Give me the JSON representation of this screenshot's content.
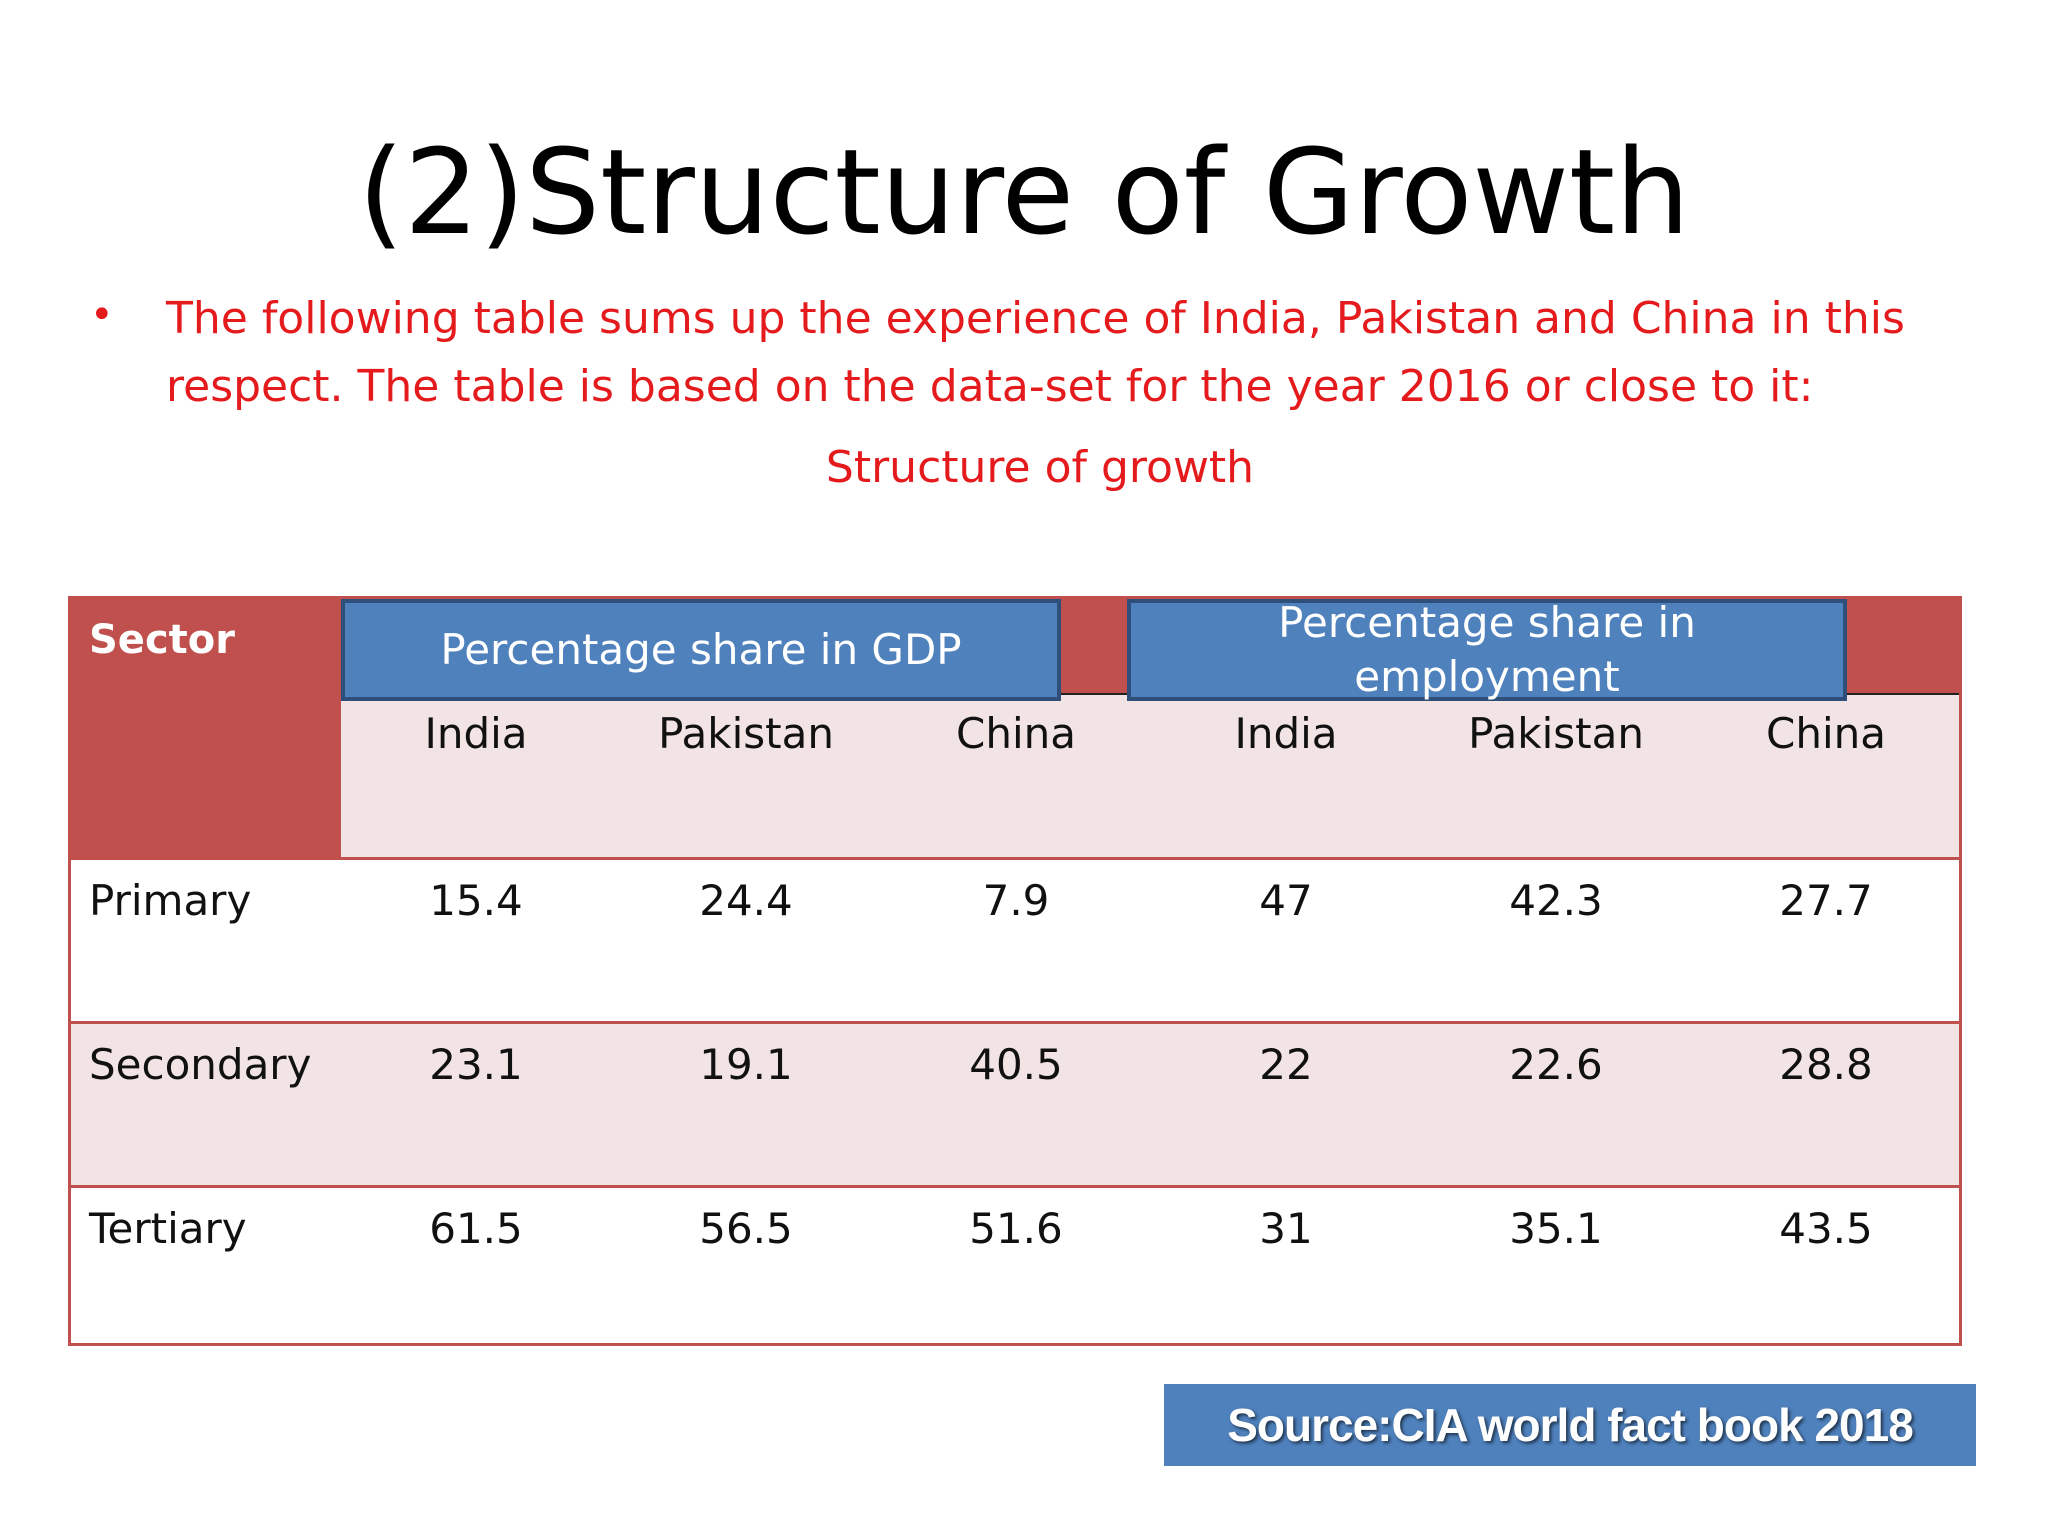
{
  "title": "(2)Structure of Growth",
  "intro_text": "The following table sums up the experience of India, Pakistan and China in this respect. The table is based on the data-set for the year 2016 or close to it:",
  "subtitle": "Structure of growth",
  "table": {
    "sector_header": "Sector",
    "gdp_group": "Percentage share in GDP",
    "employment_group": "Percentage share in employment",
    "columns": [
      "India",
      "Pakistan",
      "China",
      "India",
      "Pakistan",
      "China"
    ],
    "rows": [
      {
        "label": "Primary",
        "values": [
          "15.4",
          "24.4",
          "7.9",
          "47",
          "42.3",
          "27.7"
        ]
      },
      {
        "label": "Secondary",
        "values": [
          "23.1",
          "19.1",
          "40.5",
          "22",
          "22.6",
          "28.8"
        ]
      },
      {
        "label": "Tertiary",
        "values": [
          "61.5",
          "56.5",
          "51.6",
          "31",
          "35.1",
          "43.5"
        ]
      }
    ]
  },
  "source": "Source:CIA world fact book 2018",
  "colors": {
    "header_red": "#c0504d",
    "box_blue": "#4f81bd",
    "text_red": "#e41a1c",
    "row_pink": "#f2e4e4"
  }
}
